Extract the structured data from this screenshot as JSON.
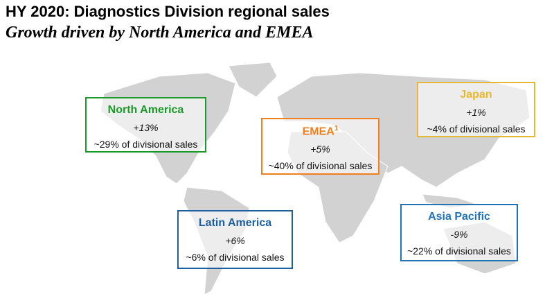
{
  "header": {
    "title": "HY 2020: Diagnostics Division regional sales",
    "subtitle": "Growth driven by North America and EMEA"
  },
  "regions": [
    {
      "name": "North America",
      "growth": "+13%",
      "share": "~29% of divisional sales",
      "color": "#1a9a2a"
    },
    {
      "name": "EMEA",
      "name_note": "1",
      "growth": "+5%",
      "share": "~40% of divisional sales",
      "color": "#f07f1e"
    },
    {
      "name": "Japan",
      "growth": "+1%",
      "share": "~4% of divisional sales",
      "color": "#e8b830"
    },
    {
      "name": "Latin America",
      "growth": "+6%",
      "share": "~6% of divisional sales",
      "color": "#1f5fa0"
    },
    {
      "name": "Asia Pacific",
      "growth": "-9%",
      "share": "~22% of divisional sales",
      "color": "#2272b8"
    }
  ]
}
